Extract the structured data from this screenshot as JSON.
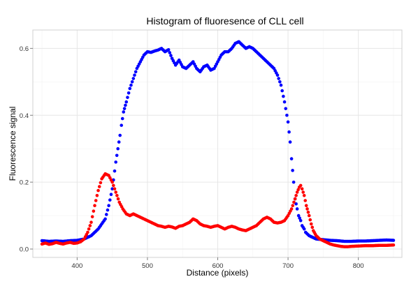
{
  "chart_data": {
    "type": "scatter",
    "title": "Histogram of fluoresence of CLL cell",
    "xlabel": "Distance (pixels)",
    "ylabel": "Fluorescence signal",
    "xlim": [
      337,
      862
    ],
    "ylim": [
      -0.025,
      0.655
    ],
    "x_ticks": [
      400,
      500,
      600,
      700,
      800
    ],
    "y_ticks": [
      0.0,
      0.2,
      0.4,
      0.6
    ],
    "x_tick_labels": [
      "400",
      "500",
      "600",
      "700",
      "800"
    ],
    "y_tick_labels": [
      "0.0",
      "0.2",
      "0.4",
      "0.6"
    ],
    "grid": true,
    "legend": "none",
    "series": [
      {
        "color": "#0000ff",
        "points": [
          [
            350,
            0.025
          ],
          [
            360,
            0.023
          ],
          [
            370,
            0.024
          ],
          [
            380,
            0.023
          ],
          [
            390,
            0.025
          ],
          [
            400,
            0.026
          ],
          [
            410,
            0.03
          ],
          [
            420,
            0.04
          ],
          [
            430,
            0.06
          ],
          [
            440,
            0.09
          ],
          [
            445,
            0.13
          ],
          [
            450,
            0.18
          ],
          [
            455,
            0.26
          ],
          [
            458,
            0.3
          ],
          [
            461,
            0.34
          ],
          [
            463,
            0.37
          ],
          [
            466,
            0.41
          ],
          [
            470,
            0.44
          ],
          [
            475,
            0.48
          ],
          [
            480,
            0.51
          ],
          [
            485,
            0.54
          ],
          [
            490,
            0.56
          ],
          [
            495,
            0.58
          ],
          [
            500,
            0.59
          ],
          [
            505,
            0.588
          ],
          [
            510,
            0.592
          ],
          [
            515,
            0.595
          ],
          [
            520,
            0.6
          ],
          [
            525,
            0.59
          ],
          [
            530,
            0.596
          ],
          [
            535,
            0.57
          ],
          [
            540,
            0.55
          ],
          [
            545,
            0.565
          ],
          [
            550,
            0.545
          ],
          [
            555,
            0.54
          ],
          [
            560,
            0.55
          ],
          [
            565,
            0.56
          ],
          [
            570,
            0.54
          ],
          [
            575,
            0.53
          ],
          [
            580,
            0.545
          ],
          [
            585,
            0.55
          ],
          [
            590,
            0.535
          ],
          [
            595,
            0.54
          ],
          [
            600,
            0.56
          ],
          [
            605,
            0.58
          ],
          [
            610,
            0.59
          ],
          [
            615,
            0.59
          ],
          [
            620,
            0.6
          ],
          [
            625,
            0.615
          ],
          [
            630,
            0.62
          ],
          [
            635,
            0.61
          ],
          [
            640,
            0.6
          ],
          [
            645,
            0.605
          ],
          [
            650,
            0.6
          ],
          [
            655,
            0.59
          ],
          [
            660,
            0.58
          ],
          [
            665,
            0.57
          ],
          [
            670,
            0.56
          ],
          [
            675,
            0.55
          ],
          [
            680,
            0.54
          ],
          [
            685,
            0.52
          ],
          [
            690,
            0.49
          ],
          [
            695,
            0.44
          ],
          [
            700,
            0.38
          ],
          [
            703,
            0.32
          ],
          [
            705,
            0.27
          ],
          [
            708,
            0.2
          ],
          [
            710,
            0.15
          ],
          [
            713,
            0.12
          ],
          [
            715,
            0.1
          ],
          [
            718,
            0.085
          ],
          [
            720,
            0.07
          ],
          [
            723,
            0.06
          ],
          [
            725,
            0.05
          ],
          [
            730,
            0.04
          ],
          [
            735,
            0.035
          ],
          [
            740,
            0.03
          ],
          [
            750,
            0.028
          ],
          [
            760,
            0.026
          ],
          [
            770,
            0.025
          ],
          [
            780,
            0.023
          ],
          [
            790,
            0.023
          ],
          [
            800,
            0.024
          ],
          [
            810,
            0.024
          ],
          [
            820,
            0.025
          ],
          [
            830,
            0.026
          ],
          [
            840,
            0.027
          ],
          [
            850,
            0.026
          ]
        ]
      },
      {
        "color": "#ff0000",
        "points": [
          [
            350,
            0.015
          ],
          [
            355,
            0.018
          ],
          [
            360,
            0.014
          ],
          [
            365,
            0.016
          ],
          [
            370,
            0.02
          ],
          [
            375,
            0.017
          ],
          [
            380,
            0.015
          ],
          [
            385,
            0.018
          ],
          [
            390,
            0.02
          ],
          [
            395,
            0.017
          ],
          [
            400,
            0.018
          ],
          [
            405,
            0.022
          ],
          [
            410,
            0.03
          ],
          [
            415,
            0.05
          ],
          [
            420,
            0.08
          ],
          [
            425,
            0.13
          ],
          [
            430,
            0.175
          ],
          [
            435,
            0.21
          ],
          [
            440,
            0.225
          ],
          [
            445,
            0.22
          ],
          [
            450,
            0.2
          ],
          [
            455,
            0.17
          ],
          [
            460,
            0.14
          ],
          [
            465,
            0.12
          ],
          [
            470,
            0.105
          ],
          [
            475,
            0.1
          ],
          [
            480,
            0.105
          ],
          [
            485,
            0.1
          ],
          [
            490,
            0.095
          ],
          [
            495,
            0.09
          ],
          [
            500,
            0.085
          ],
          [
            505,
            0.08
          ],
          [
            510,
            0.075
          ],
          [
            515,
            0.07
          ],
          [
            520,
            0.068
          ],
          [
            525,
            0.065
          ],
          [
            530,
            0.068
          ],
          [
            535,
            0.066
          ],
          [
            540,
            0.062
          ],
          [
            545,
            0.068
          ],
          [
            550,
            0.07
          ],
          [
            555,
            0.075
          ],
          [
            560,
            0.08
          ],
          [
            565,
            0.09
          ],
          [
            570,
            0.085
          ],
          [
            575,
            0.075
          ],
          [
            580,
            0.07
          ],
          [
            585,
            0.068
          ],
          [
            590,
            0.065
          ],
          [
            595,
            0.068
          ],
          [
            600,
            0.07
          ],
          [
            605,
            0.065
          ],
          [
            610,
            0.06
          ],
          [
            615,
            0.065
          ],
          [
            620,
            0.068
          ],
          [
            625,
            0.065
          ],
          [
            630,
            0.06
          ],
          [
            635,
            0.057
          ],
          [
            640,
            0.055
          ],
          [
            645,
            0.06
          ],
          [
            650,
            0.065
          ],
          [
            655,
            0.07
          ],
          [
            660,
            0.08
          ],
          [
            665,
            0.09
          ],
          [
            670,
            0.095
          ],
          [
            675,
            0.09
          ],
          [
            680,
            0.08
          ],
          [
            685,
            0.078
          ],
          [
            690,
            0.08
          ],
          [
            695,
            0.085
          ],
          [
            700,
            0.1
          ],
          [
            705,
            0.12
          ],
          [
            710,
            0.15
          ],
          [
            713,
            0.17
          ],
          [
            716,
            0.185
          ],
          [
            718,
            0.19
          ],
          [
            720,
            0.18
          ],
          [
            723,
            0.16
          ],
          [
            726,
            0.13
          ],
          [
            730,
            0.1
          ],
          [
            733,
            0.075
          ],
          [
            736,
            0.055
          ],
          [
            740,
            0.04
          ],
          [
            745,
            0.03
          ],
          [
            750,
            0.025
          ],
          [
            755,
            0.02
          ],
          [
            760,
            0.015
          ],
          [
            765,
            0.012
          ],
          [
            770,
            0.01
          ],
          [
            775,
            0.008
          ],
          [
            780,
            0.007
          ],
          [
            785,
            0.007
          ],
          [
            790,
            0.008
          ],
          [
            800,
            0.009
          ],
          [
            810,
            0.01
          ],
          [
            820,
            0.01
          ],
          [
            830,
            0.011
          ],
          [
            840,
            0.011
          ],
          [
            850,
            0.012
          ]
        ]
      }
    ]
  }
}
